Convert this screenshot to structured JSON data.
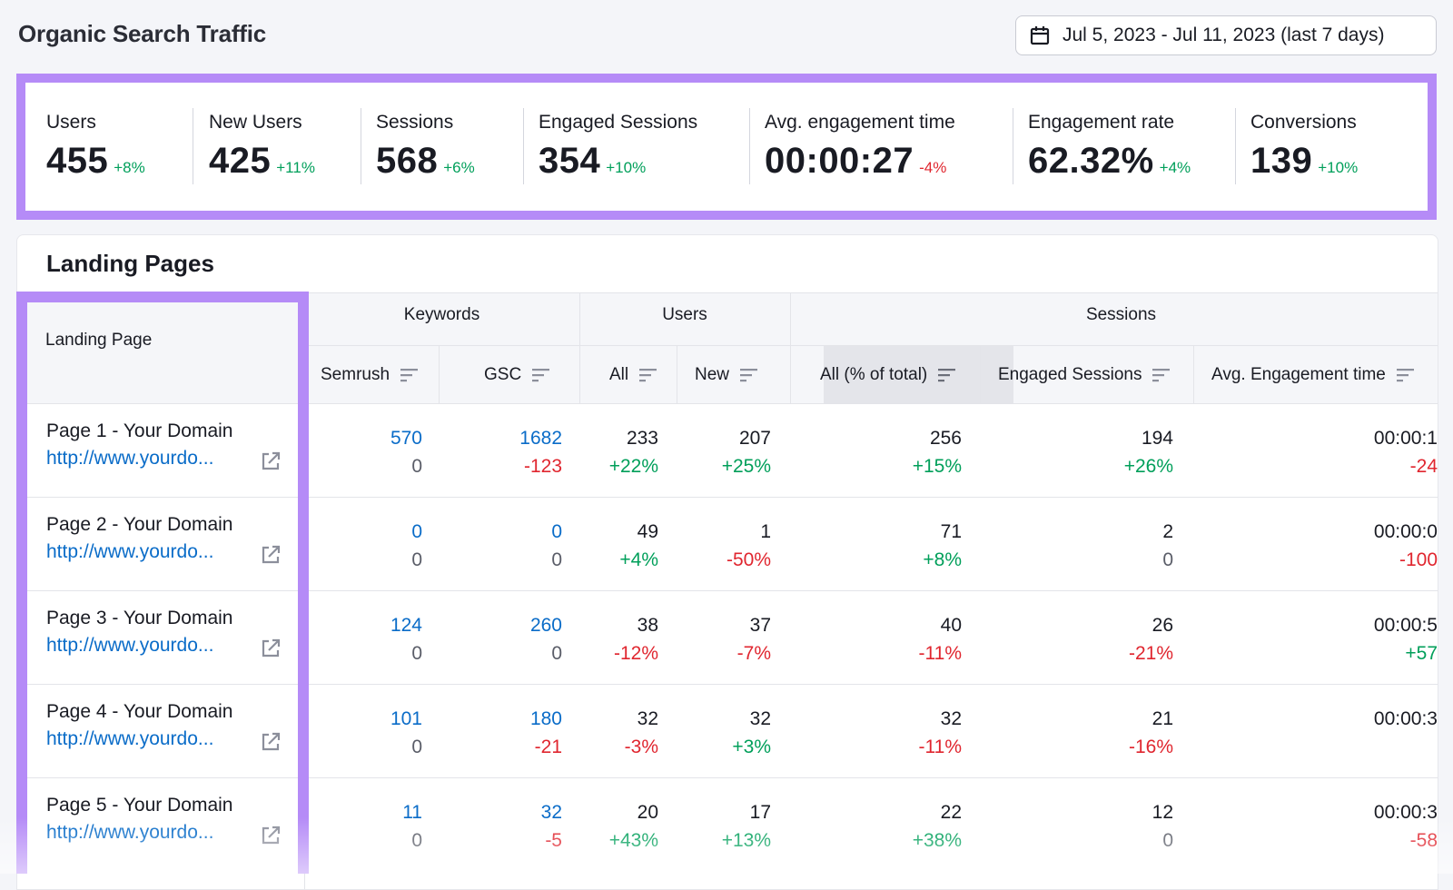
{
  "page_title": "Organic Search Traffic",
  "date_range": {
    "label": "Jul 5, 2023 - Jul 11, 2023 (last 7 days)",
    "icon": "calendar-icon"
  },
  "metrics": [
    {
      "label": "Users",
      "value": "455",
      "delta": "+8%",
      "trend": "up"
    },
    {
      "label": "New Users",
      "value": "425",
      "delta": "+11%",
      "trend": "up"
    },
    {
      "label": "Sessions",
      "value": "568",
      "delta": "+6%",
      "trend": "up"
    },
    {
      "label": "Engaged Sessions",
      "value": "354",
      "delta": "+10%",
      "trend": "up"
    },
    {
      "label": "Avg. engagement time",
      "value": "00:00:27",
      "delta": "-4%",
      "trend": "down"
    },
    {
      "label": "Engagement rate",
      "value": "62.32%",
      "delta": "+4%",
      "trend": "up"
    },
    {
      "label": "Conversions",
      "value": "139",
      "delta": "+10%",
      "trend": "up"
    }
  ],
  "landing_pages": {
    "title": "Landing Pages",
    "groups": {
      "keywords": "Keywords",
      "users": "Users",
      "sessions": "Sessions"
    },
    "columns": {
      "landing_page": "Landing Page",
      "semrush": "Semrush",
      "gsc": "GSC",
      "users_all": "All",
      "users_new": "New",
      "sessions_all": "All (% of total)",
      "engaged_sessions": "Engaged Sessions",
      "avg_engagement_time": "Avg. Engagement time"
    },
    "rows": [
      {
        "name": "Page 1 - Your Domain",
        "url": "http://www.yourdo...",
        "semrush": "570",
        "semrush_delta": "0",
        "gsc": "1682",
        "gsc_delta": "-123",
        "users_all": "233",
        "users_all_delta": "+22%",
        "users_new": "207",
        "users_new_delta": "+25%",
        "sessions_all": "256",
        "sessions_all_delta": "+15%",
        "engaged": "194",
        "engaged_delta": "+26%",
        "avg_time": "00:00:1",
        "avg_time_delta": "-24"
      },
      {
        "name": "Page 2 - Your Domain",
        "url": "http://www.yourdo...",
        "semrush": "0",
        "semrush_delta": "0",
        "gsc": "0",
        "gsc_delta": "0",
        "users_all": "49",
        "users_all_delta": "+4%",
        "users_new": "1",
        "users_new_delta": "-50%",
        "sessions_all": "71",
        "sessions_all_delta": "+8%",
        "engaged": "2",
        "engaged_delta": "0",
        "avg_time": "00:00:0",
        "avg_time_delta": "-100"
      },
      {
        "name": "Page 3 - Your Domain",
        "url": "http://www.yourdo...",
        "semrush": "124",
        "semrush_delta": "0",
        "gsc": "260",
        "gsc_delta": "0",
        "users_all": "38",
        "users_all_delta": "-12%",
        "users_new": "37",
        "users_new_delta": "-7%",
        "sessions_all": "40",
        "sessions_all_delta": "-11%",
        "engaged": "26",
        "engaged_delta": "-21%",
        "avg_time": "00:00:5",
        "avg_time_delta": "+57"
      },
      {
        "name": "Page 4 - Your Domain",
        "url": "http://www.yourdo...",
        "semrush": "101",
        "semrush_delta": "0",
        "gsc": "180",
        "gsc_delta": "-21",
        "users_all": "32",
        "users_all_delta": "-3%",
        "users_new": "32",
        "users_new_delta": "+3%",
        "sessions_all": "32",
        "sessions_all_delta": "-11%",
        "engaged": "21",
        "engaged_delta": "-16%",
        "avg_time": "00:00:3",
        "avg_time_delta": ""
      },
      {
        "name": "Page 5 - Your Domain",
        "url": "http://www.yourdo...",
        "semrush": "11",
        "semrush_delta": "0",
        "gsc": "32",
        "gsc_delta": "-5",
        "users_all": "20",
        "users_all_delta": "+43%",
        "users_new": "17",
        "users_new_delta": "+13%",
        "sessions_all": "22",
        "sessions_all_delta": "+38%",
        "engaged": "12",
        "engaged_delta": "0",
        "avg_time": "00:00:3",
        "avg_time_delta": "-58"
      }
    ]
  },
  "colors": {
    "accent": "#b58bf7",
    "positive": "#009f5a",
    "negative": "#e0262f",
    "link": "#0a6cc8"
  }
}
